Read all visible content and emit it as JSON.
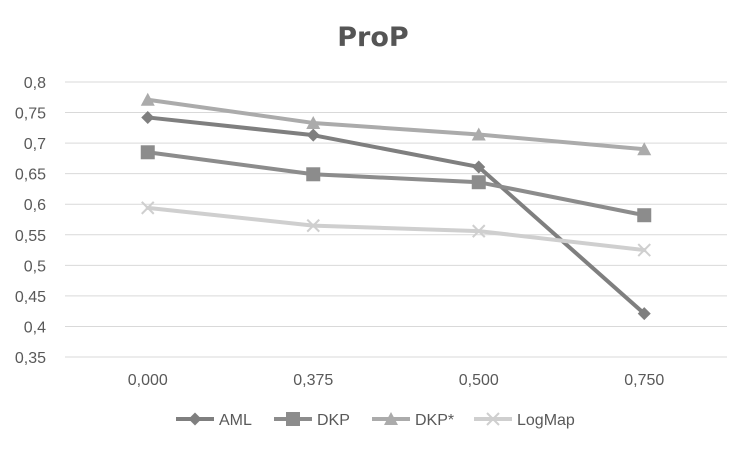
{
  "chart_data": {
    "type": "line",
    "title": "ProP",
    "xlabel": "",
    "ylabel": "",
    "categories": [
      "0,000",
      "0,375",
      "0,500",
      "0,750"
    ],
    "y_ticks": [
      "0,35",
      "0,4",
      "0,45",
      "0,5",
      "0,55",
      "0,6",
      "0,65",
      "0,7",
      "0,75",
      "0,8"
    ],
    "ylim": [
      0.35,
      0.8
    ],
    "grid": "horizontal",
    "legend_position": "bottom",
    "series": [
      {
        "name": "AML",
        "marker": "diamond",
        "color": "#7f7f7f",
        "values": [
          0.742,
          0.713,
          0.661,
          0.421
        ]
      },
      {
        "name": "DKP",
        "marker": "square",
        "color": "#8c8c8c",
        "values": [
          0.685,
          0.649,
          0.636,
          0.582
        ]
      },
      {
        "name": "DKP*",
        "marker": "triangle",
        "color": "#ababab",
        "values": [
          0.771,
          0.733,
          0.714,
          0.69
        ]
      },
      {
        "name": "LogMap",
        "marker": "x",
        "color": "#cfcfcf",
        "values": [
          0.594,
          0.565,
          0.556,
          0.525
        ]
      }
    ]
  }
}
